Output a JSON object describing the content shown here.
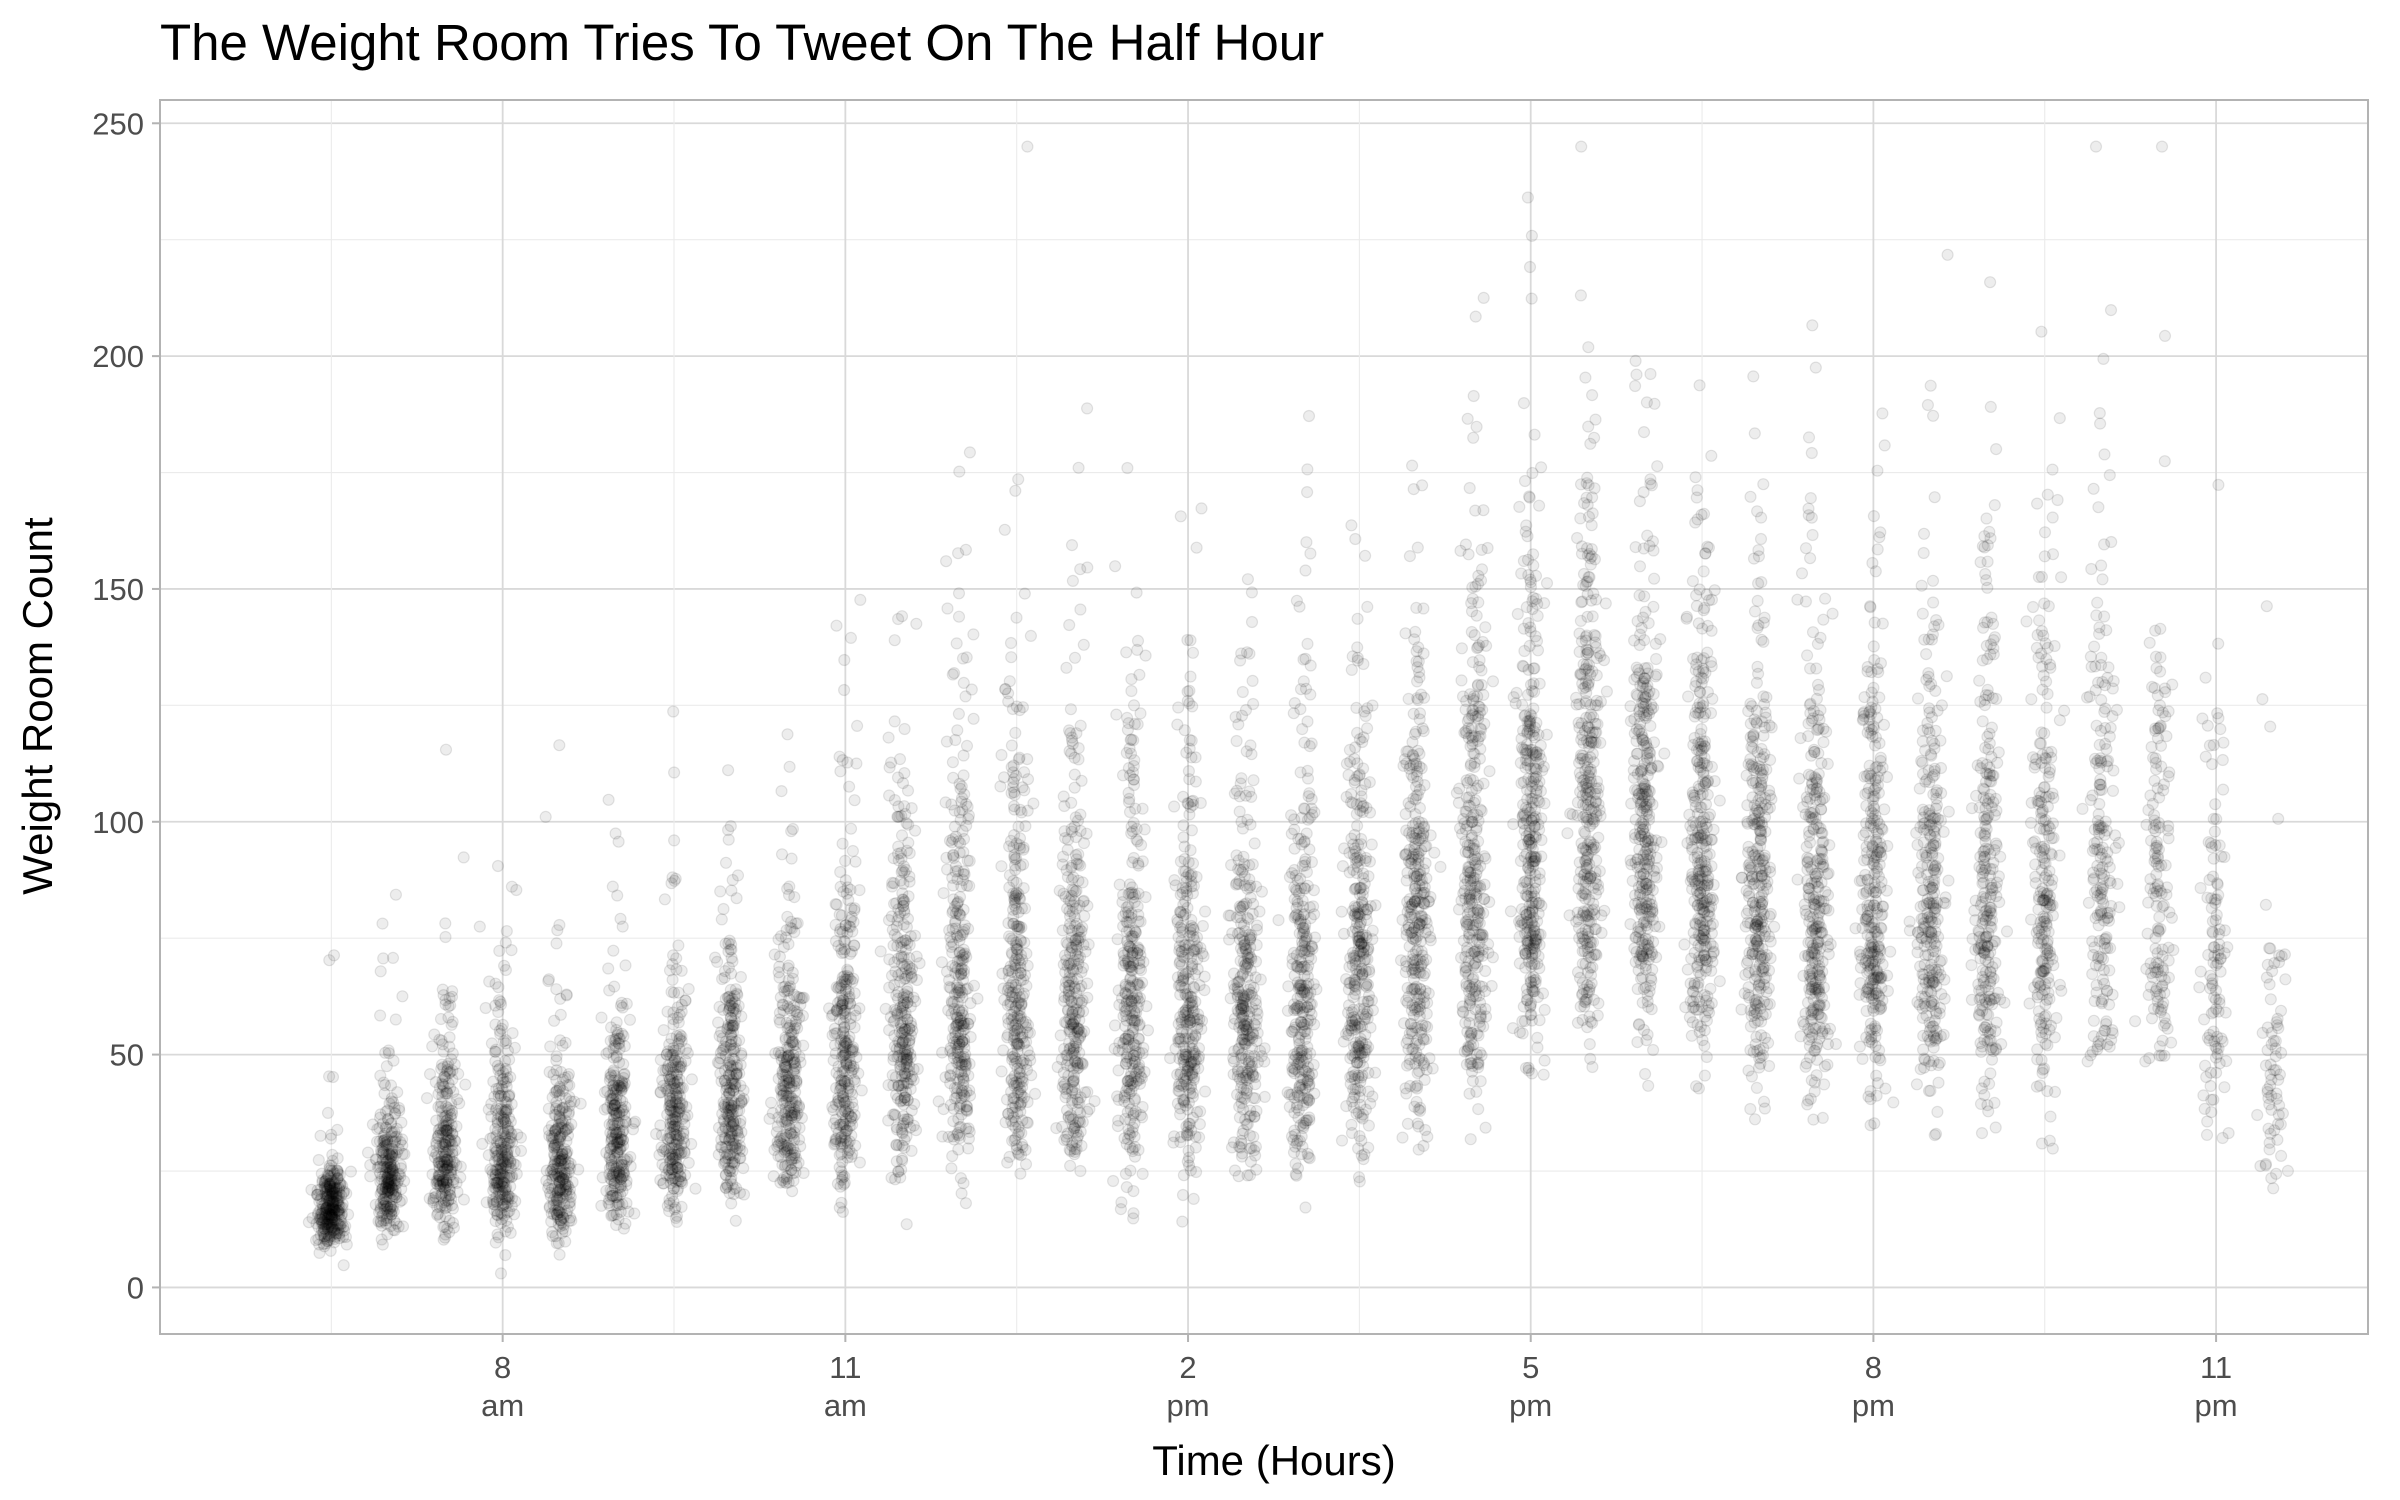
{
  "chart_data": {
    "type": "scatter",
    "title": "The Weight Room Tries To Tweet On The Half Hour",
    "xlabel": "Time (Hours)",
    "ylabel": "Weight Room Count",
    "x_unit": "hour of day",
    "xlim": [
      5,
      24.33
    ],
    "ylim": [
      -10,
      255
    ],
    "grid": true,
    "legend": "none",
    "point_color": "#000000",
    "point_opacity": 0.07,
    "x_ticks": [
      {
        "value": 8,
        "label_top": "8",
        "label_bottom": "am"
      },
      {
        "value": 11,
        "label_top": "11",
        "label_bottom": "am"
      },
      {
        "value": 14,
        "label_top": "2",
        "label_bottom": "pm"
      },
      {
        "value": 17,
        "label_top": "5",
        "label_bottom": "pm"
      },
      {
        "value": 20,
        "label_top": "8",
        "label_bottom": "pm"
      },
      {
        "value": 23,
        "label_top": "11",
        "label_bottom": "pm"
      }
    ],
    "y_ticks": [
      0,
      50,
      100,
      150,
      200,
      250
    ],
    "clusters": [
      {
        "time": 6.5,
        "median": 17,
        "spread": 7,
        "count": 300
      },
      {
        "time": 7.0,
        "median": 24,
        "spread": 12,
        "count": 260
      },
      {
        "time": 7.5,
        "median": 30,
        "spread": 16,
        "count": 260
      },
      {
        "time": 8.0,
        "median": 30,
        "spread": 17,
        "count": 270
      },
      {
        "time": 8.5,
        "median": 27,
        "spread": 16,
        "count": 260
      },
      {
        "time": 9.0,
        "median": 32,
        "spread": 16,
        "count": 260
      },
      {
        "time": 9.5,
        "median": 36,
        "spread": 17,
        "count": 270
      },
      {
        "time": 10.0,
        "median": 42,
        "spread": 19,
        "count": 270
      },
      {
        "time": 10.5,
        "median": 44,
        "spread": 20,
        "count": 270
      },
      {
        "time": 11.0,
        "median": 50,
        "spread": 23,
        "count": 280
      },
      {
        "time": 11.5,
        "median": 58,
        "spread": 27,
        "count": 290
      },
      {
        "time": 12.0,
        "median": 62,
        "spread": 29,
        "count": 300
      },
      {
        "time": 12.5,
        "median": 64,
        "spread": 30,
        "count": 300
      },
      {
        "time": 13.0,
        "median": 63,
        "spread": 30,
        "count": 300
      },
      {
        "time": 13.5,
        "median": 62,
        "spread": 29,
        "count": 300
      },
      {
        "time": 14.0,
        "median": 60,
        "spread": 28,
        "count": 300
      },
      {
        "time": 14.5,
        "median": 60,
        "spread": 28,
        "count": 300
      },
      {
        "time": 15.0,
        "median": 63,
        "spread": 29,
        "count": 300
      },
      {
        "time": 15.5,
        "median": 68,
        "spread": 30,
        "count": 310
      },
      {
        "time": 16.0,
        "median": 78,
        "spread": 32,
        "count": 320
      },
      {
        "time": 16.5,
        "median": 86,
        "spread": 34,
        "count": 330
      },
      {
        "time": 17.0,
        "median": 95,
        "spread": 35,
        "count": 340
      },
      {
        "time": 17.5,
        "median": 100,
        "spread": 34,
        "count": 340
      },
      {
        "time": 18.0,
        "median": 98,
        "spread": 33,
        "count": 330
      },
      {
        "time": 18.5,
        "median": 94,
        "spread": 32,
        "count": 320
      },
      {
        "time": 19.0,
        "median": 88,
        "spread": 31,
        "count": 310
      },
      {
        "time": 19.5,
        "median": 84,
        "spread": 30,
        "count": 300
      },
      {
        "time": 20.0,
        "median": 82,
        "spread": 29,
        "count": 290
      },
      {
        "time": 20.5,
        "median": 84,
        "spread": 31,
        "count": 280
      },
      {
        "time": 21.0,
        "median": 86,
        "spread": 33,
        "count": 260
      },
      {
        "time": 21.5,
        "median": 88,
        "spread": 35,
        "count": 230
      },
      {
        "time": 22.0,
        "median": 92,
        "spread": 36,
        "count": 190
      },
      {
        "time": 22.5,
        "median": 85,
        "spread": 35,
        "count": 150
      },
      {
        "time": 23.0,
        "median": 75,
        "spread": 33,
        "count": 110
      },
      {
        "time": 23.5,
        "median": 50,
        "spread": 22,
        "count": 70
      }
    ]
  }
}
